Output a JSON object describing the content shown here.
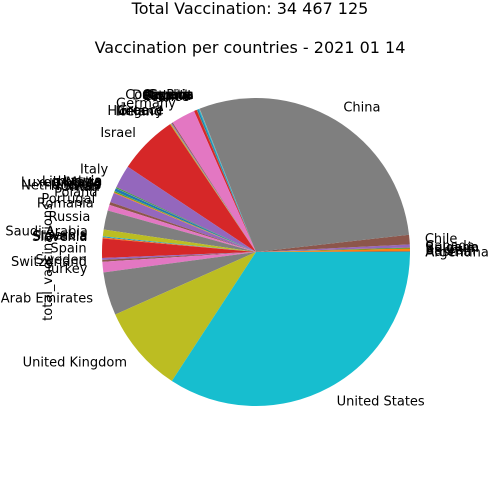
{
  "chart_data": {
    "type": "pie",
    "title_line1": "Total Vaccination: 34 467 125",
    "title_line2": "Vaccination per countries - 2021 01 14",
    "ylabel": "total_vaccinations",
    "start_angle_deg": 0,
    "direction": "counterclockwise",
    "slices": [
      {
        "label": "Argentina",
        "value": 0.0,
        "color": "#17becf"
      },
      {
        "label": "Austria",
        "value": 0.06,
        "color": "#1f77b4"
      },
      {
        "label": "Bahrain",
        "value": 0.3,
        "color": "#ff7f0e"
      },
      {
        "label": "Belgium",
        "value": 0.09,
        "color": "#2ca02c"
      },
      {
        "label": "Bulgaria",
        "value": 0.03,
        "color": "#d62728"
      },
      {
        "label": "Canada",
        "value": 0.3,
        "color": "#9467bd"
      },
      {
        "label": "Chile",
        "value": 1.0,
        "color": "#8c564b"
      },
      {
        "label": "China",
        "value": 29.0,
        "color": "#7f7f7f"
      },
      {
        "label": "Costa Rica",
        "value": 0.01,
        "color": "#e377c2"
      },
      {
        "label": "Croatia",
        "value": 0.03,
        "color": "#7f7f7f"
      },
      {
        "label": "Cyprus",
        "value": 0.01,
        "color": "#bcbd22"
      },
      {
        "label": "Czechia",
        "value": 0.1,
        "color": "#17becf"
      },
      {
        "label": "Denmark",
        "value": 0.14,
        "color": "#1f77b4"
      },
      {
        "label": "Estonia",
        "value": 0.01,
        "color": "#ff7f0e"
      },
      {
        "label": "Finland",
        "value": 0.04,
        "color": "#2ca02c"
      },
      {
        "label": "France",
        "value": 0.29,
        "color": "#d62728"
      },
      {
        "label": "Germany",
        "value": 2.5,
        "color": "#e377c2"
      },
      {
        "label": "Greece",
        "value": 0.1,
        "color": "#8c564b"
      },
      {
        "label": "Hungary",
        "value": 0.1,
        "color": "#9467bd"
      },
      {
        "label": "Iceland",
        "value": 0.02,
        "color": "#7f7f7f"
      },
      {
        "label": "Ireland",
        "value": 0.1,
        "color": "#bcbd22"
      },
      {
        "label": "Israel",
        "value": 6.2,
        "color": "#d62728"
      },
      {
        "label": "Italy",
        "value": 2.4,
        "color": "#9467bd"
      },
      {
        "label": "Latvia",
        "value": 0.01,
        "color": "#ff7f0e"
      },
      {
        "label": "Lithuania",
        "value": 0.1,
        "color": "#2ca02c"
      },
      {
        "label": "Luxembourg",
        "value": 0.01,
        "color": "#8c564b"
      },
      {
        "label": "Malta",
        "value": 0.02,
        "color": "#e377c2"
      },
      {
        "label": "Mexico",
        "value": 0.3,
        "color": "#1f77b4"
      },
      {
        "label": "Netherlands",
        "value": 0.02,
        "color": "#bcbd22"
      },
      {
        "label": "Norway",
        "value": 0.1,
        "color": "#2ca02c"
      },
      {
        "label": "Oman",
        "value": 0.1,
        "color": "#ff7f0e"
      },
      {
        "label": "Poland",
        "value": 1.0,
        "color": "#9467bd"
      },
      {
        "label": "Portugal",
        "value": 0.3,
        "color": "#8c564b"
      },
      {
        "label": "Romania",
        "value": 0.6,
        "color": "#e377c2"
      },
      {
        "label": "Russia",
        "value": 2.0,
        "color": "#7f7f7f"
      },
      {
        "label": "Saudi Arabia",
        "value": 0.7,
        "color": "#bcbd22"
      },
      {
        "label": "Serbia",
        "value": 0.06,
        "color": "#17becf"
      },
      {
        "label": "Slovakia",
        "value": 0.07,
        "color": "#1f77b4"
      },
      {
        "label": "Slovenia",
        "value": 0.1,
        "color": "#ff7f0e"
      },
      {
        "label": "Spain",
        "value": 2.0,
        "color": "#d62728"
      },
      {
        "label": "Sweden",
        "value": 0.2,
        "color": "#9467bd"
      },
      {
        "label": "Switzerland",
        "value": 0.2,
        "color": "#8c564b"
      },
      {
        "label": "Turkey",
        "value": 1.1,
        "color": "#e377c2"
      },
      {
        "label": "United Arab Emirates",
        "value": 4.5,
        "color": "#7f7f7f"
      },
      {
        "label": "United Kingdom",
        "value": 9.1,
        "color": "#bcbd22"
      },
      {
        "label": "United States",
        "value": 34.0,
        "color": "#17becf"
      }
    ]
  }
}
